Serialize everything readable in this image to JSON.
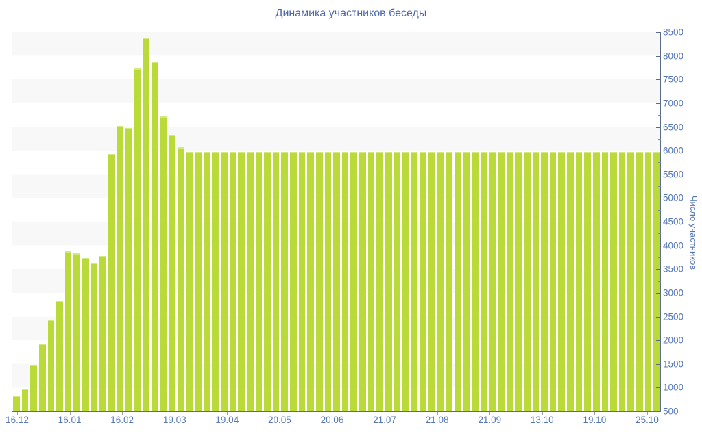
{
  "chart_data": {
    "type": "bar",
    "title": "Динамика участников беседы",
    "xlabel": "",
    "ylabel": "Число участников",
    "ylim": [
      500,
      8500
    ],
    "y_tick_step": 500,
    "y_minor_tick_step": 250,
    "grid": "horizontal-stripe-bands",
    "legend": "none",
    "x_tick_labels": [
      "16.12",
      "16.01",
      "16.02",
      "19.03",
      "19.04",
      "20.05",
      "20.06",
      "21.07",
      "21.08",
      "21.09",
      "13.10",
      "19.10",
      "25.10"
    ],
    "values": [
      800,
      950,
      1450,
      1900,
      2400,
      2800,
      3850,
      3800,
      3700,
      3600,
      3750,
      5900,
      6500,
      6450,
      7700,
      8350,
      7850,
      6700,
      6300,
      6050,
      5950,
      5950,
      5950,
      5950,
      5950,
      5950,
      5950,
      5950,
      5950,
      5950,
      5950,
      5950,
      5950,
      5950,
      5950,
      5950,
      5950,
      5950,
      5950,
      5950,
      5950,
      5950,
      5950,
      5950,
      5950,
      5950,
      5950,
      5950,
      5950,
      5950,
      5950,
      5950,
      5950,
      5950,
      5950,
      5950,
      5950,
      5950,
      5950,
      5950,
      5950,
      5950,
      5950,
      5950,
      5950,
      5950,
      5950,
      5950,
      5950,
      5950,
      5950,
      5950,
      5950,
      5950,
      5950
    ],
    "colors": {
      "bar": "#b9da38",
      "bar_highlight": "#d3e87e",
      "stripe_band": "#f8f8f8",
      "axis_line": "#5a6b8e",
      "tick_label": "#5577b5",
      "title": "#4d68a6",
      "background": "#ffffff"
    }
  }
}
